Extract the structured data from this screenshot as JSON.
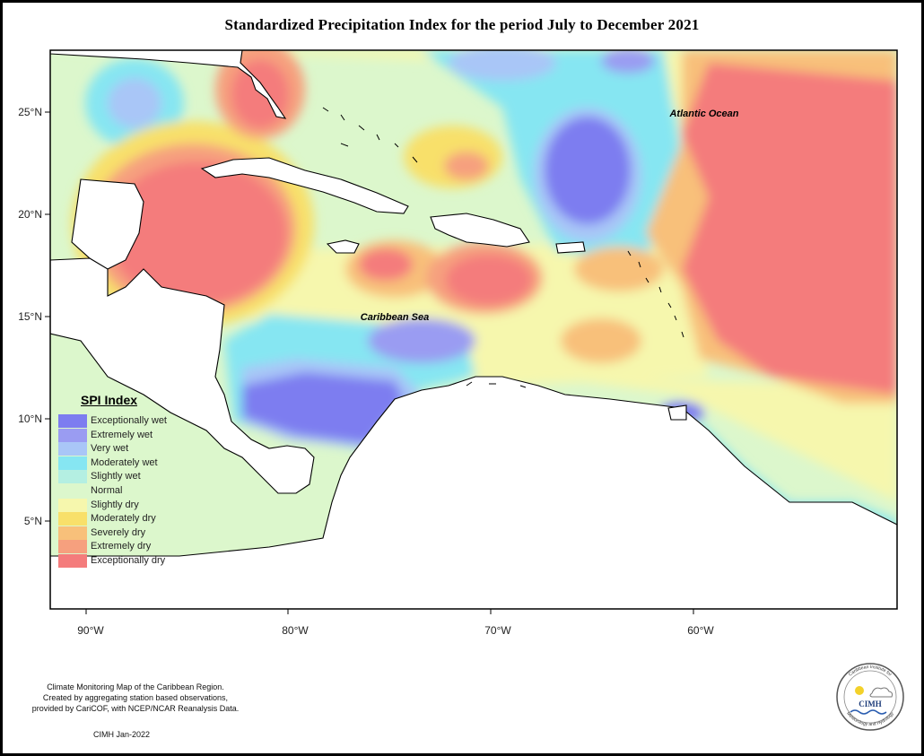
{
  "title": "Standardized Precipitation Index for the period July to December 2021",
  "map_labels": {
    "atlantic": "Atlantic Ocean",
    "caribbean": "Caribbean Sea"
  },
  "lat_ticks": [
    "25°N",
    "20°N",
    "15°N",
    "10°N",
    "5°N"
  ],
  "lon_ticks": [
    "90°W",
    "80°W",
    "70°W",
    "60°W"
  ],
  "legend": {
    "title": "SPI Index",
    "items": [
      {
        "label": "Exceptionally wet",
        "color": "#7d7df0"
      },
      {
        "label": "Extremely wet",
        "color": "#9a9cf2"
      },
      {
        "label": "Very wet",
        "color": "#a9c6f7"
      },
      {
        "label": "Moderately wet",
        "color": "#86e6f2"
      },
      {
        "label": "Slightly wet",
        "color": "#b4efe2"
      },
      {
        "label": "Normal",
        "color": "#dcf7cc"
      },
      {
        "label": "Slightly dry",
        "color": "#f6f7ad"
      },
      {
        "label": "Moderately dry",
        "color": "#f8e06a"
      },
      {
        "label": "Severely dry",
        "color": "#f8c07a"
      },
      {
        "label": "Extremely dry",
        "color": "#f6a07e"
      },
      {
        "label": "Exceptionally dry",
        "color": "#f47c7c"
      }
    ]
  },
  "credits": {
    "line1": "Climate Monitoring Map of the Caribbean Region.",
    "line2": "Created by aggregating station based observations,",
    "line3": "provided by CariCOF, with NCEP/NCAR Reanalysis Data.",
    "date": "CIMH Jan-2022"
  },
  "logo": {
    "text": "CIMH",
    "ring_top": "Caribbean Institute for",
    "ring_bottom": "Meteorology and Hydrology"
  }
}
